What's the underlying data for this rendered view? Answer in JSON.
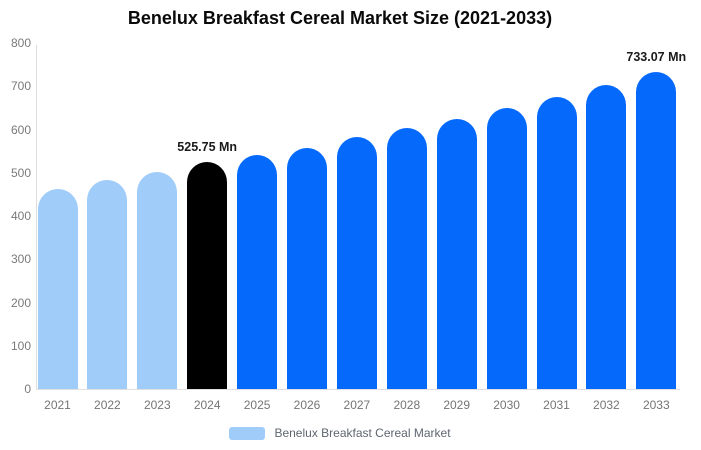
{
  "title": "Benelux Breakfast Cereal Market Size (2021-2033)",
  "legend": {
    "label": "Benelux Breakfast Cereal Market",
    "swatch_color": "#A0CCFA"
  },
  "colors": {
    "historical_bar": "#A0CCFA",
    "base_year_bar": "#000000",
    "forecast_bar": "#0569FC",
    "axis_line": "#E0E0E0",
    "tick_text": "#7A7A7A",
    "title_text": "#0A0A0A"
  },
  "chart_data": {
    "type": "bar",
    "title": "Benelux Breakfast Cereal Market Size (2021-2033)",
    "categories": [
      "2021",
      "2022",
      "2023",
      "2024",
      "2025",
      "2026",
      "2027",
      "2028",
      "2029",
      "2030",
      "2031",
      "2032",
      "2033"
    ],
    "values": [
      462,
      483,
      501,
      525.75,
      540,
      558,
      582,
      604,
      624,
      650,
      676,
      704,
      733.07
    ],
    "bar_roles": [
      "historical",
      "historical",
      "historical",
      "base_year",
      "forecast",
      "forecast",
      "forecast",
      "forecast",
      "forecast",
      "forecast",
      "forecast",
      "forecast",
      "forecast"
    ],
    "data_labels": [
      {
        "category": "2024",
        "text": "525.75 Mn"
      },
      {
        "category": "2033",
        "text": "733.07 Mn"
      }
    ],
    "xlabel": "",
    "ylabel": "",
    "ylim": [
      0,
      800
    ],
    "yticks": [
      0,
      100,
      200,
      300,
      400,
      500,
      600,
      700,
      800
    ],
    "grid": false,
    "legend_position": "bottom",
    "legend_entries": [
      "Benelux Breakfast Cereal Market"
    ],
    "unit": "Mn"
  }
}
